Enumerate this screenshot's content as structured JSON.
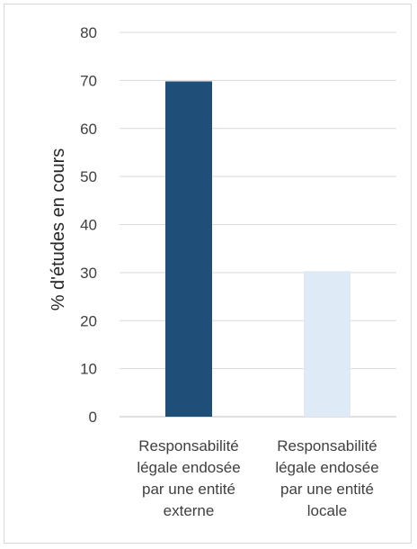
{
  "chart_data": {
    "type": "bar",
    "title": "",
    "ylabel": "% d'études en cours",
    "xlabel": "",
    "ylim": [
      0,
      80
    ],
    "yticks": [
      0,
      10,
      20,
      30,
      40,
      50,
      60,
      70,
      80
    ],
    "grid": true,
    "categories": [
      [
        "Responsabilité",
        "légale endosée",
        "par une entité",
        "externe"
      ],
      [
        "Responsabilité",
        "légale endosée",
        "par une entité",
        "locale"
      ]
    ],
    "values": [
      69.8,
      30.3
    ],
    "colors": [
      "#1f4e79",
      "#deebf7"
    ],
    "gridColor": "#d9d9d9",
    "axisColor": "#bfbfbf"
  }
}
